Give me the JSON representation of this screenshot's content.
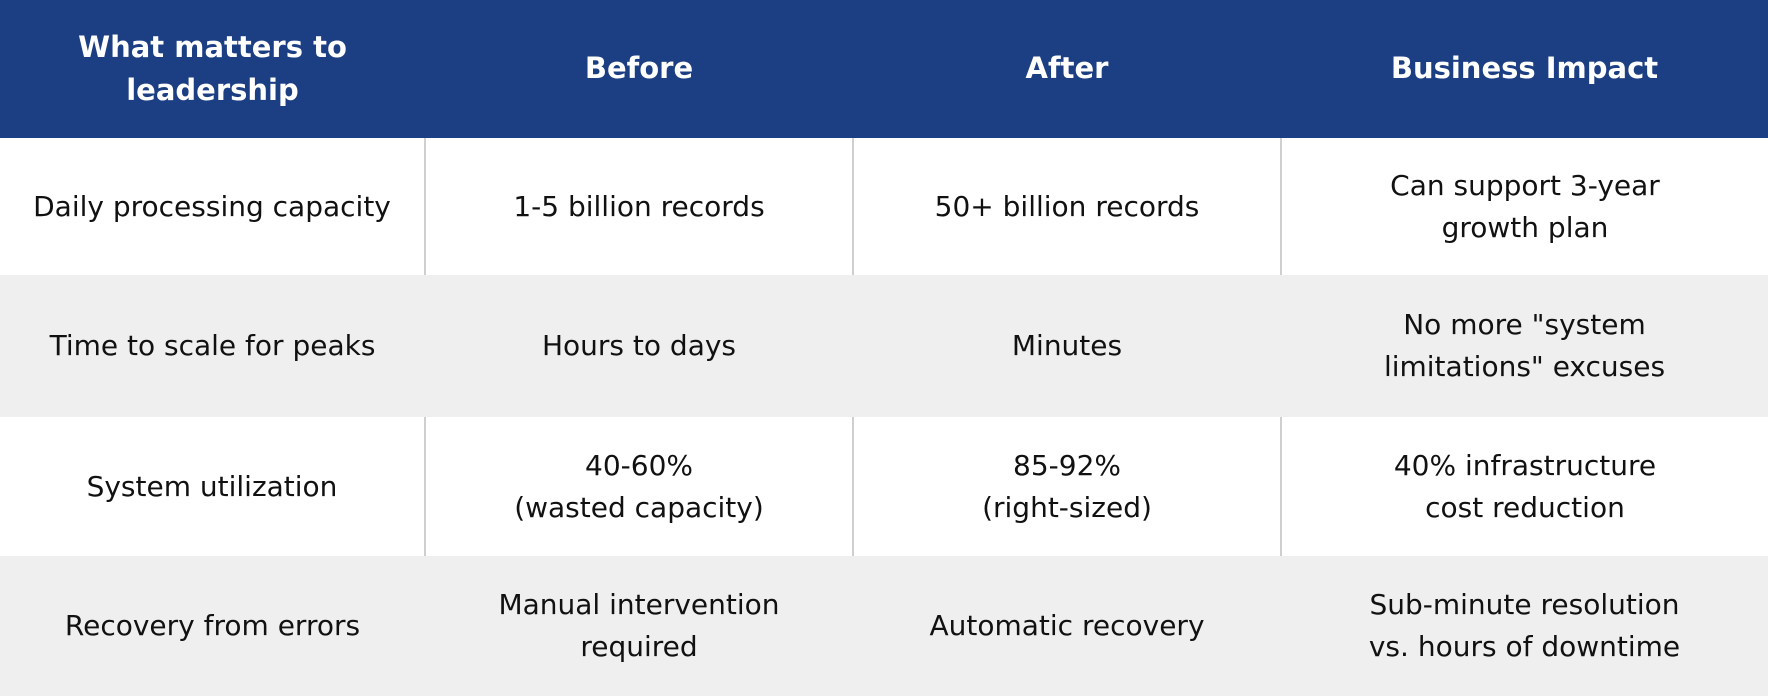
{
  "table": {
    "header": [
      "What matters to\nleadership",
      "Before",
      "After",
      "Business Impact"
    ],
    "rows": [
      [
        "Daily processing capacity",
        "1-5 billion records",
        "50+ billion records",
        "Can support 3-year\ngrowth plan"
      ],
      [
        "Time to scale for peaks",
        "Hours to days",
        "Minutes",
        "No more \"system\nlimitations\" excuses"
      ],
      [
        "System utilization",
        "40-60%\n(wasted capacity)",
        "85-92%\n(right-sized)",
        "40% infrastructure\ncost reduction"
      ],
      [
        "Recovery from errors",
        "Manual intervention\nrequired",
        "Automatic recovery",
        "Sub-minute resolution\nvs. hours of downtime"
      ]
    ]
  }
}
